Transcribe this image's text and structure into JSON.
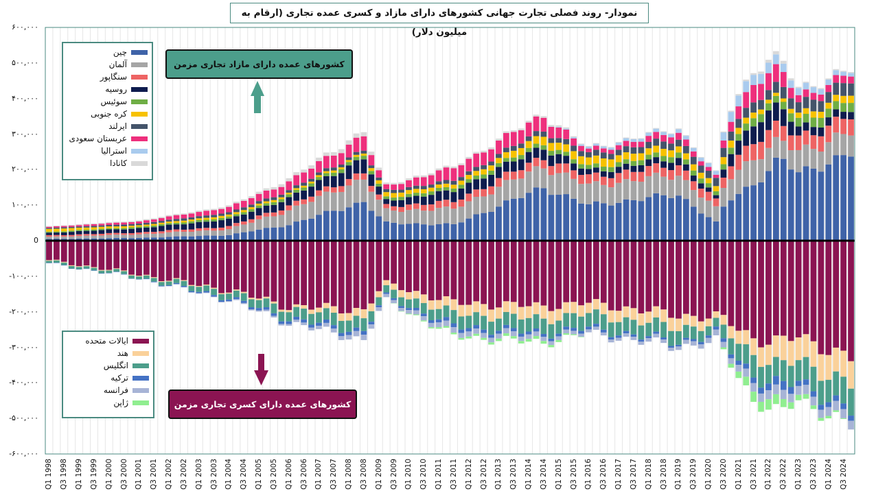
{
  "chart_data": {
    "type": "bar",
    "stacked": true,
    "title": "نمودار- روند فصلی تجارت جهانی کشورهای دارای مازاد و کسری عمده تجاری (ارقام به میلیون دلار)",
    "ylim": [
      -600000,
      600000
    ],
    "yticks": [
      "-۶۰۰,۰۰۰",
      "-۵۰۰,۰۰۰",
      "-۴۰۰,۰۰۰",
      "-۳۰۰,۰۰۰",
      "-۲۰۰,۰۰۰",
      "-۱۰۰,۰۰۰",
      "0",
      "۱۰۰,۰۰۰",
      "۲۰۰,۰۰۰",
      "۳۰۰,۰۰۰",
      "۴۰۰,۰۰۰",
      "۵۰۰,۰۰۰",
      "۶۰۰,۰۰۰"
    ],
    "x_start_year": 1998,
    "x_quarters": 108,
    "x_tick_labels": [
      "Q1 1998",
      "Q3 1998",
      "Q1 1999",
      "Q3 1999",
      "Q1 2000",
      "Q3 2000",
      "Q1 2001",
      "Q3 2001",
      "Q1 2002",
      "Q3 2002",
      "Q1 2003",
      "Q3 2003",
      "Q1 2004",
      "Q3 2004",
      "Q1 2005",
      "Q3 2005",
      "Q1 2006",
      "Q3 2006",
      "Q1 2007",
      "Q3 2007",
      "Q1 2008",
      "Q3 2008",
      "Q1 2009",
      "Q3 2009",
      "Q1 2010",
      "Q3 2010",
      "Q1 2011",
      "Q3 2011",
      "Q1 2012",
      "Q3 2012",
      "Q1 2013",
      "Q3 2013",
      "Q1 2014",
      "Q3 2014",
      "Q1 2015",
      "Q3 2015",
      "Q1 2016",
      "Q3 2016",
      "Q1 2017",
      "Q3 2017",
      "Q1 2018",
      "Q3 2018",
      "Q1 2019",
      "Q3 2019",
      "Q1 2020",
      "Q3 2020",
      "Q1 2021",
      "Q3 2021",
      "Q1 2022",
      "Q3 2022",
      "Q1 2023",
      "Q3 2023",
      "Q1 2024",
      "Q3 2024"
    ],
    "surplus_callout": "کشورهای عمده دارای مازاد تجاری مزمن",
    "deficit_callout": "کشورهای عمده دارای کسری تجاری مزمن",
    "surplus_anchor_years": [
      1998,
      2001,
      2004,
      2006,
      2008.5,
      2009.2,
      2011.5,
      2014.5,
      2016,
      2019,
      2020.25,
      2020.6,
      2021.5,
      2022.4,
      2023,
      2024.75
    ],
    "surplus_series": [
      {
        "name": "چین",
        "color": "#3f63a8",
        "values": [
          5000,
          8000,
          16000,
          45000,
          110000,
          50000,
          45000,
          150000,
          100000,
          130000,
          50000,
          110000,
          160000,
          230000,
          190000,
          245000
        ]
      },
      {
        "name": "آلمان",
        "color": "#a5a5a5",
        "values": [
          6000,
          10000,
          16000,
          40000,
          65000,
          35000,
          45000,
          60000,
          55000,
          55000,
          40000,
          60000,
          75000,
          50000,
          60000,
          60000
        ]
      },
      {
        "name": "سنگاپور",
        "color": "#ee6464",
        "values": [
          4000,
          5000,
          8000,
          13000,
          18000,
          12000,
          20000,
          25000,
          25000,
          28000,
          22000,
          35000,
          48000,
          45000,
          40000,
          45000
        ]
      },
      {
        "name": "روسیه",
        "color": "#0e1c4e",
        "values": [
          7000,
          12000,
          20000,
          22000,
          40000,
          15000,
          30000,
          30000,
          15000,
          20000,
          10000,
          30000,
          50000,
          55000,
          25000,
          20000
        ]
      },
      {
        "name": "سوئیس",
        "color": "#6fae45",
        "values": [
          3000,
          4000,
          6000,
          8000,
          10000,
          8000,
          10000,
          12000,
          12000,
          15000,
          12000,
          16000,
          22000,
          20000,
          25000,
          25000
        ]
      },
      {
        "name": "کره جنوبی",
        "color": "#f7c200",
        "values": [
          8000,
          4000,
          6000,
          5000,
          6000,
          12000,
          10000,
          22000,
          22000,
          18000,
          15000,
          20000,
          15000,
          8000,
          15000,
          20000
        ]
      },
      {
        "name": "ایرلند",
        "color": "#44546a",
        "values": [
          3000,
          5000,
          7000,
          8000,
          8000,
          8000,
          10000,
          14000,
          15000,
          20000,
          22000,
          25000,
          28000,
          30000,
          30000,
          35000
        ]
      },
      {
        "name": "عربستان سعودی",
        "color": "#ee2f7c",
        "values": [
          3000,
          6000,
          15000,
          25000,
          40000,
          12000,
          35000,
          40000,
          10000,
          20000,
          8000,
          25000,
          50000,
          45000,
          20000,
          20000
        ]
      },
      {
        "name": "استرالیا",
        "color": "#a9cbee",
        "values": [
          0,
          0,
          0,
          0,
          0,
          0,
          0,
          0,
          5000,
          10000,
          10000,
          30000,
          30000,
          25000,
          20000,
          10000
        ]
      },
      {
        "name": "کانادا",
        "color": "#d9d9d9",
        "values": [
          2000,
          3000,
          4000,
          8000,
          12000,
          5000,
          5000,
          5000,
          2000,
          2000,
          2000,
          3000,
          5000,
          10000,
          3000,
          3000
        ]
      }
    ],
    "deficit_anchor_years": [
      1998,
      2001,
      2004,
      2006,
      2008.5,
      2009.2,
      2011.5,
      2014.5,
      2016,
      2019,
      2020.25,
      2020.6,
      2021.5,
      2022.4,
      2023,
      2024.75
    ],
    "deficit_series": [
      {
        "name": "ایالات متحده",
        "color": "#8b1452",
        "values": [
          -55000,
          -95000,
          -140000,
          -185000,
          -195000,
          -120000,
          -175000,
          -185000,
          -175000,
          -210000,
          -215000,
          -225000,
          -275000,
          -285000,
          -270000,
          -330000
        ]
      },
      {
        "name": "هند",
        "color": "#fad19a",
        "values": [
          -2000,
          -2000,
          -3000,
          -6000,
          -25000,
          -15000,
          -30000,
          -35000,
          -30000,
          -35000,
          -20000,
          -30000,
          -45000,
          -70000,
          -65000,
          -75000
        ]
      },
      {
        "name": "انگلیس",
        "color": "#4c9e8b",
        "values": [
          -6000,
          -8000,
          -18000,
          -28000,
          -35000,
          -20000,
          -35000,
          -40000,
          -40000,
          -40000,
          -25000,
          -40000,
          -60000,
          -55000,
          -60000,
          -75000
        ]
      },
      {
        "name": "ترکیه",
        "color": "#4472c4",
        "values": [
          -1000,
          -1000,
          -5000,
          -8000,
          -10000,
          -4000,
          -10000,
          -8000,
          -8000,
          -5000,
          -8000,
          -10000,
          -15000,
          -25000,
          -15000,
          -15000
        ]
      },
      {
        "name": "فرانسه",
        "color": "#a7b4d6",
        "values": [
          0,
          0,
          -2000,
          -5000,
          -15000,
          -8000,
          -15000,
          -12000,
          -8000,
          -10000,
          -15000,
          -15000,
          -25000,
          -25000,
          -25000,
          -25000
        ]
      },
      {
        "name": "ژاپن",
        "color": "#90ee90",
        "values": [
          0,
          0,
          0,
          0,
          0,
          0,
          -5000,
          -8000,
          0,
          0,
          0,
          -8000,
          -30000,
          -25000,
          -15000,
          0
        ]
      }
    ],
    "grid": true
  }
}
